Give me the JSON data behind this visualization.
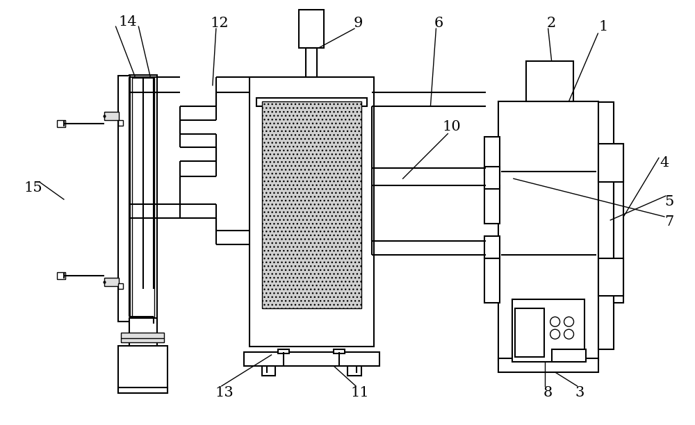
{
  "bg_color": "#ffffff",
  "line_color": "#000000",
  "lw": 1.5,
  "lw_thin": 1.0,
  "label_fontsize": 15,
  "hatch_color": "#c8c8c8"
}
